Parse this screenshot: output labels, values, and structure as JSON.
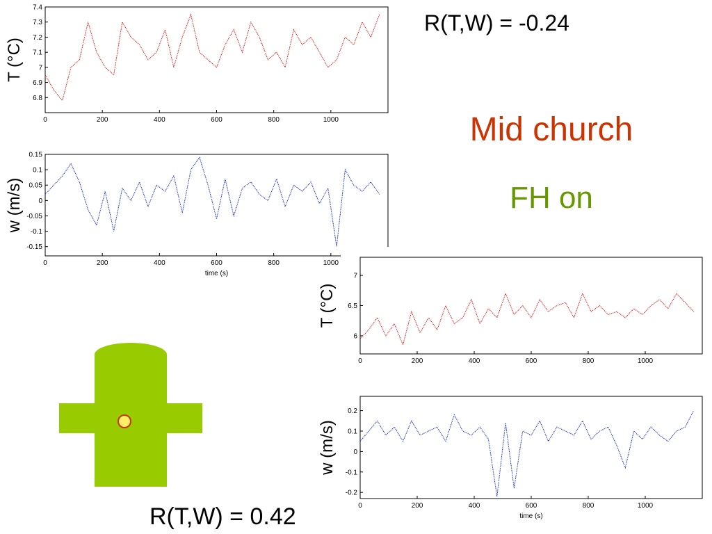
{
  "chart_data": [
    {
      "type": "line",
      "ylabel": "T (°C)",
      "color": "#dd2222",
      "x": [
        0,
        30,
        60,
        90,
        120,
        150,
        180,
        210,
        240,
        270,
        300,
        330,
        360,
        390,
        420,
        450,
        480,
        510,
        540,
        570,
        600,
        630,
        660,
        690,
        720,
        750,
        780,
        810,
        840,
        870,
        900,
        930,
        960,
        990,
        1020,
        1050,
        1080,
        1110,
        1140,
        1170
      ],
      "values": [
        6.95,
        6.85,
        6.78,
        7.0,
        7.05,
        7.3,
        7.1,
        7.0,
        6.95,
        7.3,
        7.2,
        7.15,
        7.05,
        7.1,
        7.25,
        7.0,
        7.2,
        7.35,
        7.1,
        7.05,
        7.0,
        7.15,
        7.25,
        7.1,
        7.3,
        7.2,
        7.05,
        7.1,
        7.0,
        7.25,
        7.15,
        7.2,
        7.1,
        7.0,
        7.05,
        7.2,
        7.15,
        7.3,
        7.2,
        7.35
      ],
      "xlim": [
        0,
        1200
      ],
      "ylim": [
        6.7,
        7.4
      ],
      "xticks": [
        0,
        200,
        400,
        600,
        800,
        1000
      ],
      "yticks": [
        6.8,
        6.9,
        7,
        7.1,
        7.2,
        7.3,
        7.4
      ]
    },
    {
      "type": "line",
      "ylabel": "w (m/s)",
      "xlabel": "time (s)",
      "color": "#2233cc",
      "x": [
        0,
        30,
        60,
        90,
        120,
        150,
        180,
        210,
        240,
        270,
        300,
        330,
        360,
        390,
        420,
        450,
        480,
        510,
        540,
        570,
        600,
        630,
        660,
        690,
        720,
        750,
        780,
        810,
        840,
        870,
        900,
        930,
        960,
        990,
        1020,
        1050,
        1080,
        1110,
        1140,
        1170
      ],
      "values": [
        0.02,
        0.05,
        0.08,
        0.12,
        0.06,
        -0.03,
        -0.08,
        0.03,
        -0.1,
        0.04,
        0.0,
        0.06,
        -0.02,
        0.05,
        0.03,
        0.08,
        -0.04,
        0.1,
        0.14,
        0.05,
        -0.06,
        0.07,
        -0.05,
        0.04,
        0.06,
        0.02,
        0.0,
        0.07,
        -0.02,
        0.05,
        0.03,
        0.06,
        -0.01,
        0.04,
        -0.15,
        0.1,
        0.05,
        0.03,
        0.06,
        0.02
      ],
      "xlim": [
        0,
        1200
      ],
      "ylim": [
        -0.18,
        0.15
      ],
      "xticks": [
        0,
        200,
        400,
        600,
        800,
        1000
      ],
      "yticks": [
        -0.15,
        -0.1,
        -0.05,
        0,
        0.05,
        0.1,
        0.15
      ]
    },
    {
      "type": "line",
      "ylabel": "T (°C)",
      "color": "#dd2222",
      "x": [
        0,
        30,
        60,
        90,
        120,
        150,
        180,
        210,
        240,
        270,
        300,
        330,
        360,
        390,
        420,
        450,
        480,
        510,
        540,
        570,
        600,
        630,
        660,
        690,
        720,
        750,
        780,
        810,
        840,
        870,
        900,
        930,
        960,
        990,
        1020,
        1050,
        1080,
        1110,
        1140,
        1170
      ],
      "values": [
        5.95,
        6.1,
        6.3,
        6.0,
        6.2,
        5.85,
        6.4,
        6.05,
        6.3,
        6.1,
        6.5,
        6.2,
        6.3,
        6.6,
        6.2,
        6.45,
        6.3,
        6.7,
        6.35,
        6.5,
        6.3,
        6.6,
        6.4,
        6.5,
        6.55,
        6.3,
        6.7,
        6.4,
        6.5,
        6.35,
        6.4,
        6.3,
        6.45,
        6.35,
        6.5,
        6.6,
        6.45,
        6.7,
        6.55,
        6.4
      ],
      "xlim": [
        0,
        1200
      ],
      "ylim": [
        5.7,
        7.3
      ],
      "xticks": [
        0,
        200,
        400,
        600,
        800,
        1000
      ],
      "yticks": [
        6,
        6.5,
        7
      ]
    },
    {
      "type": "line",
      "ylabel": "w (m/s)",
      "xlabel": "time (s)",
      "color": "#2233cc",
      "x": [
        0,
        30,
        60,
        90,
        120,
        150,
        180,
        210,
        240,
        270,
        300,
        330,
        360,
        390,
        420,
        450,
        480,
        510,
        540,
        570,
        600,
        630,
        660,
        690,
        720,
        750,
        780,
        810,
        840,
        870,
        900,
        930,
        960,
        990,
        1020,
        1050,
        1080,
        1110,
        1140,
        1170
      ],
      "values": [
        0.05,
        0.1,
        0.15,
        0.08,
        0.12,
        0.05,
        0.15,
        0.08,
        0.1,
        0.12,
        0.05,
        0.18,
        0.1,
        0.08,
        0.12,
        0.06,
        -0.22,
        0.14,
        -0.18,
        0.1,
        0.08,
        0.15,
        0.05,
        0.12,
        0.1,
        0.08,
        0.15,
        0.06,
        0.1,
        0.12,
        0.03,
        -0.08,
        0.1,
        0.06,
        0.12,
        0.08,
        0.05,
        0.1,
        0.12,
        0.2
      ],
      "xlim": [
        0,
        1200
      ],
      "ylim": [
        -0.23,
        0.27
      ],
      "xticks": [
        0,
        200,
        400,
        600,
        800,
        1000
      ],
      "yticks": [
        -0.2,
        -0.1,
        0,
        0.1,
        0.2
      ]
    }
  ],
  "annotations": {
    "top_correlation": "R(T,W) = -0.24",
    "location": "Mid church",
    "condition": "FH on",
    "bottom_correlation": "R(T,W) = 0.42"
  }
}
